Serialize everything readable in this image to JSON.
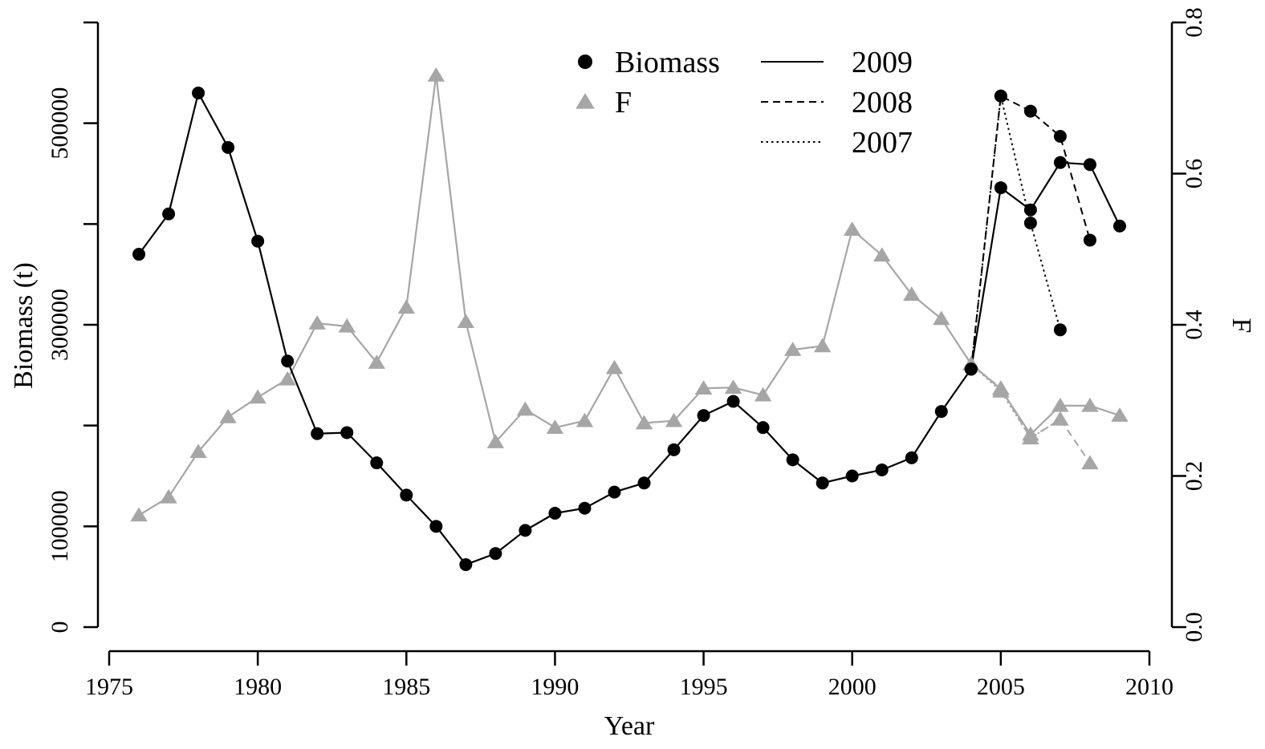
{
  "chart_data": {
    "type": "line",
    "xlabel": "Year",
    "ylabel": "Biomass (t)",
    "y2label": "F",
    "xlim": [
      1975,
      2010
    ],
    "ylim": [
      0,
      600000
    ],
    "y2lim": [
      0,
      0.8
    ],
    "xticks": [
      "1975",
      "1980",
      "1985",
      "1990",
      "1995",
      "2000",
      "2005",
      "2010"
    ],
    "yticks": [
      "0",
      "100000",
      "300000",
      "500000"
    ],
    "y2ticks": [
      "0.0",
      "0.2",
      "0.4",
      "0.6",
      "0.8"
    ],
    "legend": {
      "placement": "top-center",
      "symbols": [
        {
          "label": "Biomass",
          "marker": "circle",
          "color": "#000000"
        },
        {
          "label": "F",
          "marker": "triangle",
          "color": "#a6a6a6"
        }
      ],
      "lines": [
        {
          "label": "2009",
          "style": "solid"
        },
        {
          "label": "2008",
          "style": "dashed"
        },
        {
          "label": "2007",
          "style": "dotted"
        }
      ]
    },
    "series": [
      {
        "name": "Biomass",
        "assessment": "2009",
        "axis": "left",
        "line": "solid",
        "marker": "circle",
        "color": "#000000",
        "x": [
          1976,
          1977,
          1978,
          1979,
          1980,
          1981,
          1982,
          1983,
          1984,
          1985,
          1986,
          1987,
          1988,
          1989,
          1990,
          1991,
          1992,
          1993,
          1994,
          1995,
          1996,
          1997,
          1998,
          1999,
          2000,
          2001,
          2002,
          2003,
          2004,
          2005,
          2006,
          2007,
          2008,
          2009
        ],
        "y": [
          370000,
          410000,
          530000,
          476000,
          383000,
          264000,
          192000,
          193000,
          163000,
          131000,
          100000,
          62000,
          73000,
          96000,
          113000,
          118000,
          134000,
          143000,
          176000,
          210000,
          224000,
          198000,
          166000,
          143000,
          150000,
          156000,
          168000,
          214000,
          256000,
          436000,
          414000,
          461000,
          459000,
          398000
        ]
      },
      {
        "name": "Biomass",
        "assessment": "2008",
        "axis": "left",
        "line": "dashed",
        "marker": "circle",
        "color": "#000000",
        "x": [
          2004,
          2005,
          2006,
          2007,
          2008
        ],
        "y": [
          256000,
          527000,
          512000,
          487000,
          384000
        ]
      },
      {
        "name": "Biomass",
        "assessment": "2007",
        "axis": "left",
        "line": "dotted",
        "marker": "circle",
        "color": "#000000",
        "x": [
          2004,
          2005,
          2006,
          2007
        ],
        "y": [
          256000,
          527000,
          401000,
          295000
        ]
      },
      {
        "name": "F",
        "assessment": "2009",
        "axis": "right",
        "line": "solid",
        "marker": "triangle",
        "color": "#a6a6a6",
        "x": [
          1976,
          1977,
          1978,
          1979,
          1980,
          1981,
          1982,
          1983,
          1984,
          1985,
          1986,
          1987,
          1988,
          1989,
          1990,
          1991,
          1992,
          1993,
          1994,
          1995,
          1996,
          1997,
          1998,
          1999,
          2000,
          2001,
          2002,
          2003,
          2004,
          2005,
          2006,
          2007,
          2008,
          2009
        ],
        "y": [
          0.148,
          0.172,
          0.232,
          0.278,
          0.304,
          0.328,
          0.402,
          0.398,
          0.35,
          0.423,
          0.73,
          0.404,
          0.245,
          0.288,
          0.264,
          0.273,
          0.343,
          0.27,
          0.273,
          0.316,
          0.317,
          0.307,
          0.367,
          0.372,
          0.526,
          0.492,
          0.44,
          0.408,
          0.348,
          0.315,
          0.255,
          0.293,
          0.293,
          0.28
        ]
      },
      {
        "name": "F",
        "assessment": "2008",
        "axis": "right",
        "line": "dashed",
        "marker": "triangle",
        "color": "#a6a6a6",
        "x": [
          2004,
          2005,
          2006,
          2007,
          2008
        ],
        "y": [
          0.348,
          0.316,
          0.25,
          0.275,
          0.217
        ]
      },
      {
        "name": "F",
        "assessment": "2007",
        "axis": "right",
        "line": "dotted",
        "marker": "triangle",
        "color": "#a6a6a6",
        "x": [
          2004,
          2005,
          2006,
          2007
        ],
        "y": [
          0.348,
          0.312,
          0.25,
          0.275
        ]
      }
    ]
  }
}
